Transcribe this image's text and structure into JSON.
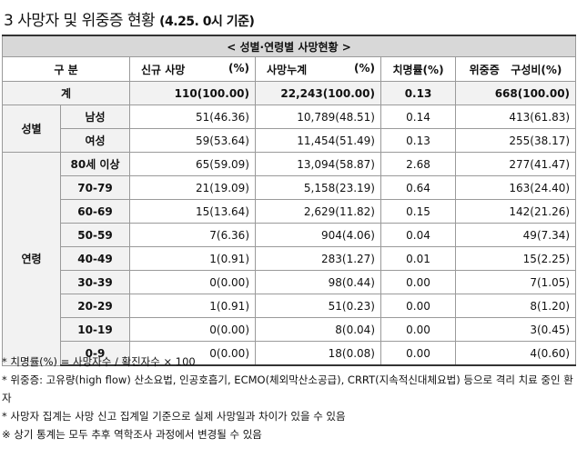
{
  "title": {
    "main": "3  사망자 및 위중증 현황",
    "sub": "(4.25. 0시 기준)"
  },
  "table": {
    "caption": "< 성별·연령별 사망현황 >",
    "headers": {
      "category": "구 분",
      "new_deaths": "신규 사망",
      "new_deaths_pct": "(%)",
      "cum_deaths": "사망누계",
      "cum_deaths_pct": "(%)",
      "cfr": "치명률(%)",
      "severe": "위중증",
      "severe_share": "구성비(%)"
    },
    "total": {
      "label": "계",
      "new": "110(100.00)",
      "cum": "22,243(100.00)",
      "rate": "0.13",
      "severe": "668(100.00)"
    },
    "sex_group": "성별",
    "sex": [
      {
        "label": "남성",
        "new": "51(46.36)",
        "cum": "10,789(48.51)",
        "rate": "0.14",
        "severe": "413(61.83)"
      },
      {
        "label": "여성",
        "new": "59(53.64)",
        "cum": "11,454(51.49)",
        "rate": "0.13",
        "severe": "255(38.17)"
      }
    ],
    "age_group": "연령",
    "age": [
      {
        "label": "80세 이상",
        "new": "65(59.09)",
        "cum": "13,094(58.87)",
        "rate": "2.68",
        "severe": "277(41.47)"
      },
      {
        "label": "70-79",
        "new": "21(19.09)",
        "cum": "5,158(23.19)",
        "rate": "0.64",
        "severe": "163(24.40)"
      },
      {
        "label": "60-69",
        "new": "15(13.64)",
        "cum": "2,629(11.82)",
        "rate": "0.15",
        "severe": "142(21.26)"
      },
      {
        "label": "50-59",
        "new": "7(6.36)",
        "cum": "904(4.06)",
        "rate": "0.04",
        "severe": "49(7.34)"
      },
      {
        "label": "40-49",
        "new": "1(0.91)",
        "cum": "283(1.27)",
        "rate": "0.01",
        "severe": "15(2.25)"
      },
      {
        "label": "30-39",
        "new": "0(0.00)",
        "cum": "98(0.44)",
        "rate": "0.00",
        "severe": "7(1.05)"
      },
      {
        "label": "20-29",
        "new": "1(0.91)",
        "cum": "51(0.23)",
        "rate": "0.00",
        "severe": "8(1.20)"
      },
      {
        "label": "10-19",
        "new": "0(0.00)",
        "cum": "8(0.04)",
        "rate": "0.00",
        "severe": "3(0.45)"
      },
      {
        "label": "0-9",
        "new": "0(0.00)",
        "cum": "18(0.08)",
        "rate": "0.00",
        "severe": "4(0.60)"
      }
    ]
  },
  "notes": [
    "* 치명률(%) = 사망자수 / 확진자수 × 100",
    "* 위중증: 고유량(high flow) 산소요법, 인공호흡기, ECMO(체외막산소공급), CRRT(지속적신대체요법) 등으로 격리 치료 중인 환자",
    "* 사망자 집계는 사망 신고 집계일 기준으로 실제 사망일과 차이가 있을 수 있음",
    "※ 상기 통계는 모두 추후 역학조사 과정에서 변경될 수 있음"
  ]
}
